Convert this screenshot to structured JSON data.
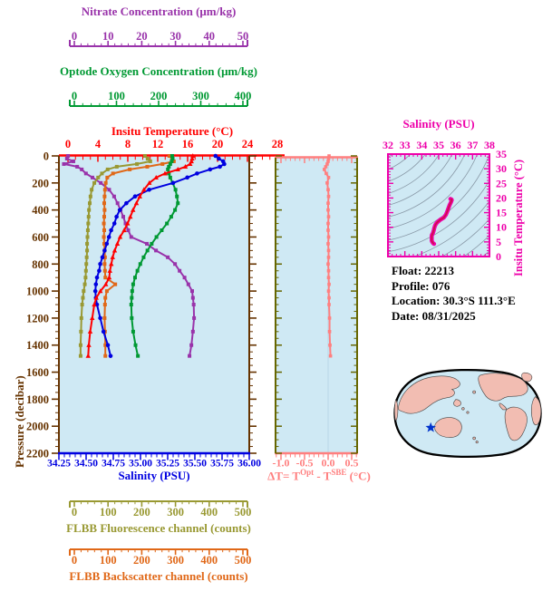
{
  "info": {
    "float": "Float:  22213",
    "profile": "Profile:  076",
    "location": "Location:  30.3°S  111.3°E",
    "date": "Date:  08/31/2025"
  },
  "chart_data": {
    "type": "line",
    "panels": {
      "profiles": {
        "ylabel": "Pressure (decibar)",
        "ylim": [
          0,
          2200
        ],
        "y_tick_step": 200,
        "y_minor_step": 50,
        "y_axis_color": "#663300",
        "pressure": [
          0,
          20,
          40,
          60,
          80,
          100,
          130,
          160,
          200,
          250,
          300,
          350,
          400,
          450,
          500,
          550,
          600,
          650,
          700,
          750,
          800,
          850,
          900,
          950,
          1000,
          1050,
          1100,
          1200,
          1300,
          1400,
          1480
        ],
        "axes": {
          "nitrate": {
            "label": "Nitrate Concentration (μm/kg)",
            "lim": [
              0,
              50
            ],
            "ticks": [
              "0",
              "10",
              "20",
              "30",
              "40",
              "50"
            ],
            "color": "#9933AA"
          },
          "oxygen": {
            "label": "Optode Oxygen Concentration (μm/kg)",
            "lim": [
              0,
              400
            ],
            "ticks": [
              "0",
              "100",
              "200",
              "300",
              "400"
            ],
            "color": "#009933"
          },
          "temperature": {
            "label": "Insitu Temperature (°C)",
            "lim": [
              0,
              28
            ],
            "ticks": [
              "0",
              "4",
              "8",
              "12",
              "16",
              "20",
              "24",
              "28"
            ],
            "color": "#FF0000"
          },
          "salinity": {
            "label": "Salinity (PSU)",
            "lim": [
              34.25,
              36
            ],
            "ticks": [
              "34.25",
              "34.50",
              "34.75",
              "35.00",
              "35.25",
              "35.50",
              "35.75",
              "36.00"
            ],
            "color": "#0000E0"
          },
          "fluorescence": {
            "label": "FLBB Fluorescence channel (counts)",
            "lim": [
              0,
              500
            ],
            "ticks": [
              "0",
              "100",
              "200",
              "300",
              "400",
              "500"
            ],
            "color": "#999933"
          },
          "backscatter": {
            "label": "FLBB Backscatter channel (counts)",
            "lim": [
              0,
              500
            ],
            "ticks": [
              "0",
              "100",
              "200",
              "300",
              "400",
              "500"
            ],
            "color": "#E06818"
          }
        },
        "series": {
          "temperature": [
            19.7,
            19.6,
            19.5,
            19.3,
            18.6,
            17.5,
            15.6,
            14.3,
            13.3,
            12.5,
            11.9,
            11.4,
            10.9,
            10.5,
            10.1,
            9.6,
            9.0,
            8.6,
            8.2,
            7.9,
            7.7,
            7.5,
            7.4,
            6.9,
            6.1,
            5.5,
            5.2,
            4.9,
            4.6,
            4.4,
            4.3
          ],
          "salinity": [
            35.69,
            35.72,
            35.76,
            35.77,
            35.73,
            35.64,
            35.52,
            35.43,
            35.3,
            35.08,
            34.95,
            34.87,
            34.81,
            34.78,
            34.76,
            34.73,
            34.71,
            34.69,
            34.67,
            34.65,
            34.63,
            34.62,
            34.6,
            34.59,
            34.585,
            34.59,
            34.6,
            34.63,
            34.66,
            34.7,
            34.725
          ],
          "oxygen": [
            238,
            239,
            237,
            234,
            231,
            229,
            231,
            234,
            239,
            245,
            248,
            250,
            244,
            236,
            227,
            216,
            205,
            195,
            186,
            178,
            171,
            165,
            160,
            156,
            154,
            153,
            152,
            153,
            156,
            161,
            166
          ],
          "nitrate": [
            2.4,
            2.1,
            3.8,
            1.3,
            4.8,
            6.0,
            7.1,
            8.8,
            11.0,
            13.2,
            14.5,
            15.4,
            16.2,
            16.9,
            17.5,
            18.2,
            19.0,
            23.1,
            25.5,
            28.6,
            30.5,
            31.7,
            33.0,
            34.0,
            35.0,
            35.2,
            35.4,
            35.5,
            35.2,
            34.8,
            34.3
          ],
          "fluorescence": [
            226,
            233,
            240,
            205,
            152,
            128,
            113,
            103,
            93,
            86,
            83,
            81,
            79,
            78,
            77,
            76,
            75,
            74,
            74,
            73,
            72,
            71,
            70,
            68,
            65,
            63,
            61,
            59,
            58,
            57,
            57
          ],
          "backscatter": [
            290,
            297,
            302,
            272,
            232,
            186,
            142,
            127,
            123,
            121,
            120,
            119,
            120,
            119,
            118,
            119,
            118,
            119,
            120,
            121,
            120,
            121,
            122,
            148,
            126,
            122,
            121,
            120,
            121,
            122,
            122
          ]
        }
      },
      "delta_t": {
        "xlabel": {
          "p1": "ΔT= T",
          "s1": "Opt",
          "p2": " - T",
          "s2": "SBE",
          "p3": " (°C)"
        },
        "xticks": [
          "-1.0",
          "-0.5",
          "0.0",
          "0.5"
        ],
        "xtick_values": [
          -1.0,
          -0.5,
          0.0,
          0.5
        ],
        "xlim": [
          -1.13,
          0.63
        ],
        "color": "#FF7F7F",
        "values": [
          0.02,
          0.01,
          0.0,
          -0.02,
          -0.05,
          -0.08,
          -0.04,
          0.01,
          -0.02,
          0.0,
          0.01,
          0.0,
          0.0,
          0.01,
          0.0,
          0.0,
          0.01,
          0.0,
          0.01,
          0.01,
          0.0,
          0.01,
          0.01,
          0.02,
          0.01,
          0.02,
          0.02,
          0.03,
          0.03,
          0.04,
          0.05
        ]
      },
      "ts": {
        "xlabel": "Salinity (PSU)",
        "ylabel": "Insitu Temperature (°C)",
        "xlim": [
          32,
          38
        ],
        "ylim": [
          0,
          35
        ],
        "xticks": [
          "32",
          "33",
          "34",
          "35",
          "36",
          "37",
          "38"
        ],
        "yticks": [
          "0",
          "5",
          "10",
          "15",
          "20",
          "25",
          "30",
          "35"
        ],
        "color": "#EE00AA",
        "curve_core_color": "#CC1144",
        "isopycnal_color": "#8a9aa8"
      }
    },
    "map": {
      "ocean_color": "#cfe9f4",
      "land_color": "#f2bdb2",
      "marker": "blue-star"
    }
  }
}
